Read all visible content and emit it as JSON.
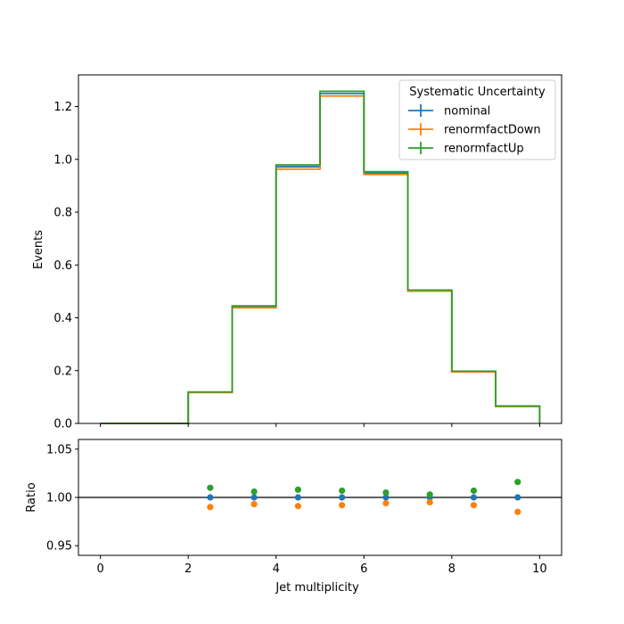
{
  "chart_data": [
    {
      "type": "line",
      "drawstyle": "steps",
      "bin_edges": [
        0,
        1,
        2,
        3,
        4,
        5,
        6,
        7,
        8,
        9,
        10
      ],
      "series": [
        {
          "name": "nominal",
          "color": "#1f77b4",
          "values": [
            0,
            0,
            0.118,
            0.442,
            0.972,
            1.25,
            0.948,
            0.503,
            0.196,
            0.065
          ]
        },
        {
          "name": "renormfactDown",
          "color": "#ff7f0e",
          "values": [
            0,
            0,
            0.117,
            0.438,
            0.963,
            1.24,
            0.943,
            0.501,
            0.195,
            0.064
          ]
        },
        {
          "name": "renormfactUp",
          "color": "#2ca02c",
          "values": [
            0,
            0,
            0.119,
            0.445,
            0.979,
            1.258,
            0.953,
            0.505,
            0.198,
            0.066
          ]
        }
      ],
      "xlim": [
        -0.5,
        10.5
      ],
      "ylim": [
        0,
        1.32
      ],
      "xlabel": "",
      "ylabel": "Events",
      "yticks": [
        "0.0",
        "0.2",
        "0.4",
        "0.6",
        "0.8",
        "1.0",
        "1.2"
      ],
      "legend": {
        "title": "Systematic Uncertainty",
        "placement": "top-right"
      },
      "grid": false
    },
    {
      "type": "scatter",
      "x": [
        2.5,
        3.5,
        4.5,
        5.5,
        6.5,
        7.5,
        8.5,
        9.5
      ],
      "series": [
        {
          "name": "nominal",
          "color": "#1f77b4",
          "values": [
            1.0,
            1.0,
            1.0,
            1.0,
            1.0,
            1.0,
            1.0,
            1.0
          ]
        },
        {
          "name": "renormfactDown",
          "color": "#ff7f0e",
          "values": [
            0.99,
            0.993,
            0.991,
            0.992,
            0.994,
            0.995,
            0.992,
            0.985
          ]
        },
        {
          "name": "renormfactUp",
          "color": "#2ca02c",
          "values": [
            1.01,
            1.006,
            1.008,
            1.007,
            1.005,
            1.003,
            1.007,
            1.016
          ]
        }
      ],
      "reference_line": 1.0,
      "xlim": [
        -0.5,
        10.5
      ],
      "ylim": [
        0.94,
        1.06
      ],
      "xlabel": "Jet multiplicity",
      "ylabel": "Ratio",
      "xticks": [
        "0",
        "2",
        "4",
        "6",
        "8",
        "10"
      ],
      "yticks": [
        "0.95",
        "1.00",
        "1.05"
      ],
      "grid": false
    }
  ]
}
